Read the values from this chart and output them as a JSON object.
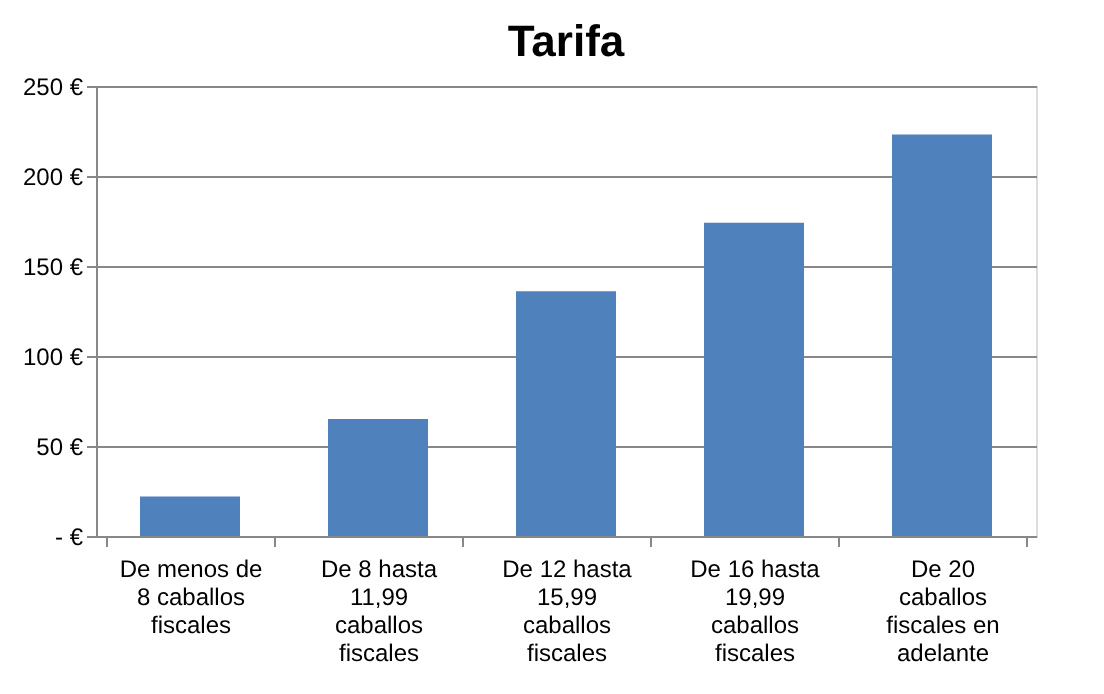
{
  "chart_data": {
    "type": "bar",
    "title": "Tarifa",
    "categories": [
      "De menos de 8 caballos fiscales",
      "De 8 hasta 11,99 caballos fiscales",
      "De 12 hasta 15,99 caballos fiscales",
      "De 16 hasta 19,99 caballos fiscales",
      "De 20 caballos fiscales en adelante"
    ],
    "values": [
      22,
      65,
      136,
      174,
      223
    ],
    "color": "#4f81bd",
    "ylim": [
      0,
      250
    ],
    "yticks": [
      {
        "value": 0,
        "label": "-  €"
      },
      {
        "value": 50,
        "label": "50 €"
      },
      {
        "value": 100,
        "label": "100 €"
      },
      {
        "value": 150,
        "label": "150 €"
      },
      {
        "value": 200,
        "label": "200 €"
      },
      {
        "value": 250,
        "label": "250 €"
      }
    ],
    "grid": "y"
  }
}
